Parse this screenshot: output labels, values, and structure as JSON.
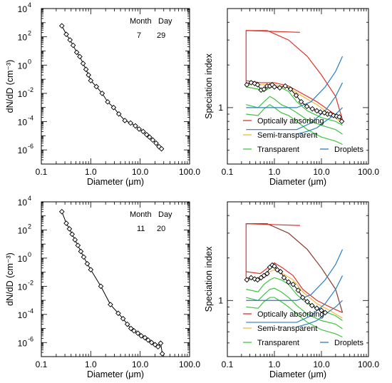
{
  "chart_data": [
    {
      "type": "line",
      "panel": "top-left",
      "xlabel": "Diameter (μm)",
      "ylabel": "dN/dD (cm⁻³)",
      "xscale": "log",
      "yscale": "log",
      "xlim": [
        0.1,
        100
      ],
      "ylim": [
        1e-07,
        10000.0
      ],
      "xticks": [
        {
          "value": 0.1,
          "label": "0.1"
        },
        {
          "value": 1,
          "label": "1.0"
        },
        {
          "value": 10,
          "label": "10.0"
        },
        {
          "value": 100,
          "label": "100.0"
        }
      ],
      "yticks": [
        {
          "value": 10000.0,
          "base": "10",
          "exp": "4"
        },
        {
          "value": 100.0,
          "base": "10",
          "exp": "2"
        },
        {
          "value": 1.0,
          "base": "10",
          "exp": "0"
        },
        {
          "value": 0.01,
          "base": "10",
          "exp": "-2"
        },
        {
          "value": 0.0001,
          "base": "10",
          "exp": "-4"
        },
        {
          "value": 1e-06,
          "base": "10",
          "exp": "-6"
        }
      ],
      "annotation": {
        "month_label": "Month",
        "day_label": "Day",
        "month": "7",
        "day": "29"
      },
      "series": [
        {
          "x": [
            0.26,
            0.32,
            0.38,
            0.44,
            0.52,
            0.6,
            0.7,
            0.8,
            0.9,
            1.0,
            1.3,
            1.7,
            2.2,
            2.9,
            3.7,
            4.9,
            6.4,
            8.0,
            9.5,
            11.5,
            13.5,
            15.5,
            18.0,
            21.0,
            24.0,
            27.0
          ],
          "y": [
            600,
            150,
            60,
            25,
            8,
            4,
            1.3,
            0.5,
            0.2,
            0.08,
            0.03,
            0.01,
            0.0025,
            0.001,
            0.00035,
            0.00012,
            8e-05,
            5e-05,
            3e-05,
            2e-05,
            1.2e-05,
            8e-06,
            5e-06,
            3e-06,
            1.7e-06,
            1.2e-06
          ],
          "color": "#000000"
        }
      ]
    },
    {
      "type": "line",
      "panel": "top-right",
      "xlabel": "Diameter (μm)",
      "ylabel": "Speciation index",
      "xscale": "log",
      "yscale": "log",
      "xlim": [
        0.1,
        100
      ],
      "ylim": [
        0.4,
        5
      ],
      "xticks": [
        {
          "value": 0.1,
          "label": "0.1"
        },
        {
          "value": 1,
          "label": "1.0"
        },
        {
          "value": 10,
          "label": "10.0"
        },
        {
          "value": 100,
          "label": "100.0"
        }
      ],
      "yticks": [
        {
          "value": 1,
          "label": "1"
        }
      ],
      "legend": [
        {
          "label": "Optically absorbing",
          "color": "#e0322a"
        },
        {
          "label": "Semi-transparent",
          "color": "#f5b83c"
        },
        {
          "label": "Transparent",
          "color": "#3ec53e"
        },
        {
          "label": "Droplets",
          "color": "#2a7fc0"
        }
      ],
      "series": [
        {
          "color": "#e0322a",
          "x": [
            0.25,
            0.7,
            2.0,
            5.0,
            10,
            20,
            28
          ],
          "y": [
            3.5,
            3.5,
            3.0,
            2.3,
            1.7,
            1.2,
            0.82
          ]
        },
        {
          "color": "#e0322a",
          "x": [
            0.25,
            0.25,
            3.5
          ],
          "y": [
            1.4,
            3.5,
            3.4
          ]
        },
        {
          "color": "#e0322a",
          "x": [
            0.25,
            0.5,
            1.0,
            2.0,
            4.0,
            8.0,
            15,
            28
          ],
          "y": [
            1.55,
            1.5,
            1.5,
            1.42,
            1.25,
            1.1,
            0.95,
            0.82
          ]
        },
        {
          "color": "#f5b83c",
          "x": [
            0.25,
            0.5,
            1.0,
            2.0,
            4.0,
            8.0,
            15,
            28
          ],
          "y": [
            1.48,
            1.45,
            1.45,
            1.38,
            1.2,
            1.05,
            0.9,
            0.78
          ]
        },
        {
          "color": "#3ec53e",
          "x": [
            0.25,
            0.45,
            0.6,
            0.8,
            1.0,
            1.4,
            2.0,
            3.0,
            5.0,
            10,
            20,
            28
          ],
          "y": [
            1.4,
            1.35,
            1.3,
            1.38,
            1.42,
            1.38,
            1.3,
            1.1,
            0.95,
            0.85,
            0.8,
            0.75
          ]
        },
        {
          "color": "#3ec53e",
          "x": [
            0.25,
            0.45,
            0.6,
            0.8,
            1.0,
            1.4,
            2.0,
            3.0,
            5.0,
            10,
            20,
            28
          ],
          "y": [
            1.05,
            1.0,
            1.1,
            1.2,
            1.15,
            1.05,
            1.0,
            0.92,
            0.82,
            0.75,
            0.7,
            0.65
          ]
        },
        {
          "color": "#3ec53e",
          "x": [
            0.25,
            0.45,
            0.6,
            0.8,
            1.0,
            1.4,
            2.0,
            3.0,
            5.0,
            10,
            20,
            28
          ],
          "y": [
            0.9,
            0.88,
            0.98,
            1.05,
            1.0,
            0.92,
            0.88,
            0.8,
            0.7,
            0.62,
            0.58,
            0.55
          ]
        },
        {
          "color": "#2a7fc0",
          "x": [
            0.25,
            3.0,
            6.0,
            12,
            20,
            28
          ],
          "y": [
            1.0,
            1.0,
            1.1,
            1.4,
            1.8,
            2.3
          ]
        },
        {
          "color": "#2a7fc0",
          "x": [
            0.25,
            3.0,
            6.0,
            12,
            20,
            28
          ],
          "y": [
            0.7,
            0.7,
            0.78,
            0.95,
            1.2,
            1.5
          ]
        },
        {
          "color": "#2a7fc0",
          "x": [
            3.0,
            5.0,
            8.0,
            12,
            20,
            28
          ],
          "y": [
            0.65,
            0.68,
            0.72,
            0.8,
            0.9,
            1.0
          ]
        },
        {
          "color": "#000000",
          "markers": true,
          "x": [
            0.26,
            0.32,
            0.38,
            0.44,
            0.52,
            0.6,
            0.7,
            0.8,
            0.9,
            1.0,
            1.3,
            1.7,
            2.2,
            2.9,
            3.7,
            4.9,
            6.4,
            8.0,
            9.5,
            11.5,
            13.5,
            15.5,
            18.0,
            21.0,
            24.0,
            27.0
          ],
          "y": [
            1.45,
            1.5,
            1.48,
            1.45,
            1.33,
            1.35,
            1.42,
            1.42,
            1.45,
            1.4,
            1.38,
            1.42,
            1.35,
            1.22,
            1.1,
            1.02,
            0.98,
            0.95,
            0.93,
            0.92,
            0.9,
            0.9,
            0.88,
            0.87,
            0.86,
            0.8
          ]
        }
      ]
    },
    {
      "type": "line",
      "panel": "bottom-left",
      "xlabel": "Diameter (μm)",
      "ylabel": "dN/dD (cm⁻³)",
      "xscale": "log",
      "yscale": "log",
      "xlim": [
        0.1,
        100
      ],
      "ylim": [
        1e-07,
        10000.0
      ],
      "xticks": [
        {
          "value": 0.1,
          "label": "0.1"
        },
        {
          "value": 1,
          "label": "1.0"
        },
        {
          "value": 10,
          "label": "10.0"
        },
        {
          "value": 100,
          "label": "100.0"
        }
      ],
      "yticks": [
        {
          "value": 10000.0,
          "base": "10",
          "exp": "4"
        },
        {
          "value": 100.0,
          "base": "10",
          "exp": "2"
        },
        {
          "value": 1.0,
          "base": "10",
          "exp": "0"
        },
        {
          "value": 0.01,
          "base": "10",
          "exp": "-2"
        },
        {
          "value": 0.0001,
          "base": "10",
          "exp": "-4"
        },
        {
          "value": 1e-06,
          "base": "10",
          "exp": "-6"
        }
      ],
      "annotation": {
        "month_label": "Month",
        "day_label": "Day",
        "month": "11",
        "day": "20"
      },
      "series": [
        {
          "x": [
            0.26,
            0.32,
            0.37,
            0.42,
            0.48,
            0.55,
            0.63,
            0.72,
            0.85,
            1.0,
            1.6,
            2.5,
            3.6,
            4.5,
            5.5,
            6.5,
            7.5,
            9.0,
            10.5,
            12.5,
            14.5,
            17,
            20,
            23,
            26,
            28
          ],
          "y": [
            2000,
            300,
            120,
            50,
            20,
            8,
            3,
            1.2,
            0.4,
            0.15,
            0.01,
            0.0005,
            0.00012,
            5e-05,
            2e-05,
            1e-05,
            6.8e-06,
            4.6e-06,
            3e-06,
            2.2e-06,
            1.5e-06,
            1e-06,
            7e-07,
            5e-07,
            8.9e-07,
            1.6e-07
          ],
          "color": "#000000"
        }
      ]
    },
    {
      "type": "line",
      "panel": "bottom-right",
      "xlabel": "Diameter (μm)",
      "ylabel": "Speciation index",
      "xscale": "log",
      "yscale": "log",
      "xlim": [
        0.1,
        100
      ],
      "ylim": [
        0.4,
        5
      ],
      "xticks": [
        {
          "value": 0.1,
          "label": "0.1"
        },
        {
          "value": 1,
          "label": "1.0"
        },
        {
          "value": 10,
          "label": "10.0"
        },
        {
          "value": 100,
          "label": "100.0"
        }
      ],
      "yticks": [
        {
          "value": 1,
          "label": "1"
        }
      ],
      "legend": [
        {
          "label": "Optically absorbing",
          "color": "#e0322a"
        },
        {
          "label": "Semi-transparent",
          "color": "#f5b83c"
        },
        {
          "label": "Transparent",
          "color": "#3ec53e"
        },
        {
          "label": "Droplets",
          "color": "#2a7fc0"
        }
      ],
      "series": [
        {
          "color": "#8b3a2a",
          "x": [
            0.25,
            0.7,
            2.0,
            5.0,
            10,
            20,
            28
          ],
          "y": [
            3.5,
            3.5,
            3.0,
            2.3,
            1.7,
            1.2,
            0.82
          ]
        },
        {
          "color": "#e0322a",
          "x": [
            0.25,
            0.25,
            3.5
          ],
          "y": [
            1.4,
            3.5,
            3.4
          ]
        },
        {
          "color": "#e0322a",
          "x": [
            0.25,
            0.5,
            0.8,
            1.0,
            1.5,
            2.5,
            4.0,
            8.0,
            15,
            28
          ],
          "y": [
            1.6,
            1.55,
            1.75,
            1.85,
            1.7,
            1.5,
            1.2,
            1.0,
            0.9,
            0.82
          ]
        },
        {
          "color": "#f5b83c",
          "x": [
            0.25,
            0.5,
            0.8,
            1.0,
            1.5,
            2.5,
            4.0,
            8.0,
            15,
            28
          ],
          "y": [
            1.45,
            1.45,
            1.6,
            1.65,
            1.55,
            1.4,
            1.15,
            0.95,
            0.85,
            0.75
          ]
        },
        {
          "color": "#3ec53e",
          "x": [
            0.25,
            0.45,
            0.6,
            0.8,
            1.0,
            1.4,
            2.0,
            3.0,
            5.0,
            10,
            20,
            28
          ],
          "y": [
            1.2,
            1.15,
            1.3,
            1.4,
            1.45,
            1.4,
            1.3,
            1.1,
            0.95,
            0.85,
            0.78,
            0.72
          ]
        },
        {
          "color": "#3ec53e",
          "x": [
            0.25,
            0.45,
            0.6,
            0.8,
            1.0,
            1.4,
            2.0,
            3.0,
            5.0,
            10,
            20,
            28
          ],
          "y": [
            1.05,
            1.0,
            1.1,
            1.2,
            1.22,
            1.15,
            1.05,
            0.92,
            0.8,
            0.72,
            0.68,
            0.63
          ]
        },
        {
          "color": "#3ec53e",
          "x": [
            0.25,
            0.45,
            0.6,
            0.8,
            1.0,
            1.4,
            2.0,
            3.0,
            5.0,
            10,
            20,
            28
          ],
          "y": [
            0.9,
            0.88,
            0.98,
            1.05,
            1.05,
            0.98,
            0.9,
            0.8,
            0.7,
            0.62,
            0.58,
            0.55
          ]
        },
        {
          "color": "#2a7fc0",
          "x": [
            0.25,
            3.0,
            6.0,
            12,
            20,
            28
          ],
          "y": [
            1.0,
            1.0,
            1.1,
            1.4,
            1.8,
            2.3
          ]
        },
        {
          "color": "#2a7fc0",
          "x": [
            0.25,
            3.0,
            6.0,
            12,
            20,
            28
          ],
          "y": [
            0.7,
            0.7,
            0.78,
            0.95,
            1.2,
            1.5
          ]
        },
        {
          "color": "#2a7fc0",
          "x": [
            3.0,
            5.0,
            8.0,
            12,
            20,
            28
          ],
          "y": [
            0.65,
            0.68,
            0.72,
            0.8,
            0.9,
            1.0
          ]
        },
        {
          "color": "#000000",
          "markers": true,
          "x": [
            0.26,
            0.32,
            0.38,
            0.44,
            0.52,
            0.6,
            0.7,
            0.8,
            0.9,
            1.0,
            1.15,
            1.35,
            1.6,
            2.0,
            2.5,
            3.2,
            4.0,
            5.0,
            6.3,
            8.0,
            10.0,
            12.0
          ],
          "y": [
            1.4,
            1.45,
            1.42,
            1.4,
            1.45,
            1.5,
            1.55,
            1.72,
            1.78,
            1.75,
            1.65,
            1.6,
            1.45,
            1.35,
            1.3,
            1.18,
            1.05,
            0.98,
            0.92,
            0.88,
            0.85,
            0.82
          ]
        }
      ]
    }
  ]
}
